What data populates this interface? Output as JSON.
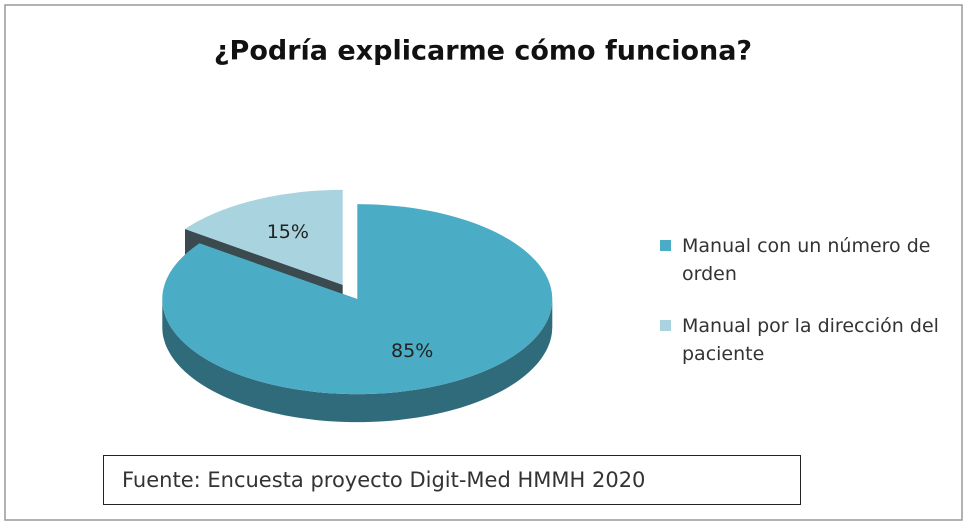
{
  "chart_data": {
    "type": "pie",
    "title": "¿Podría explicarme cómo funciona?",
    "categories": [
      "Manual con un número de orden",
      "Manual por la dirección del paciente"
    ],
    "values": [
      85,
      15
    ],
    "value_labels": [
      "85%",
      "15%"
    ],
    "colors": [
      "#4bacc6",
      "#a9d3df"
    ],
    "legend": "right",
    "annotation": "Fuente: Encuesta proyecto Digit-Med HMMH 2020"
  }
}
